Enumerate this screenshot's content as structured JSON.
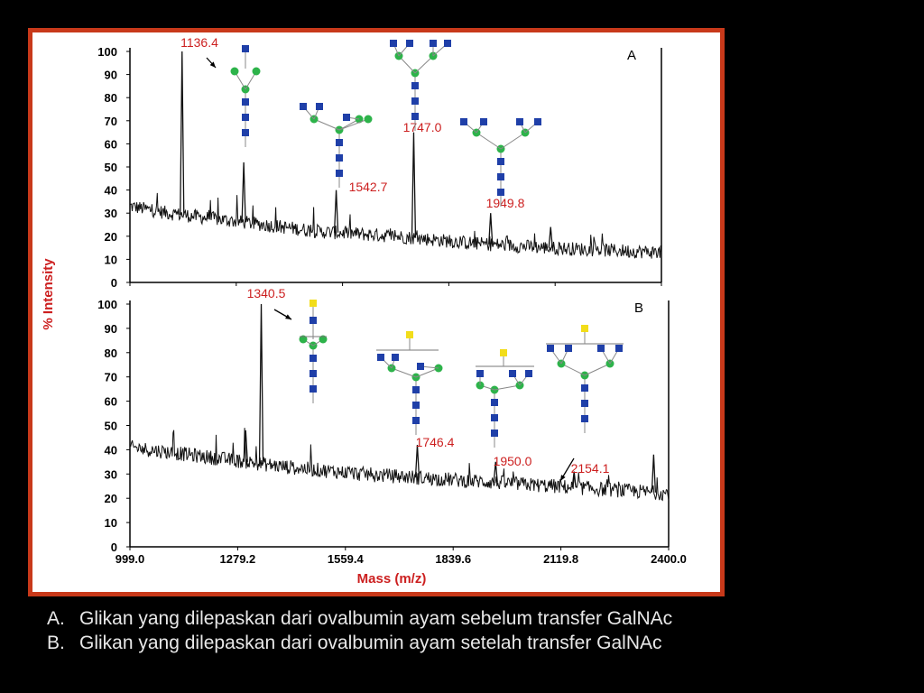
{
  "colors": {
    "background": "#000000",
    "frame": "#c8391a",
    "label_red": "#cc1f1f",
    "trace": "#111111",
    "glcnac_blue": "#1f3fa8",
    "mannose_green": "#2db34a",
    "galnac_yellow": "#f2dd1a"
  },
  "chart_data": [
    {
      "type": "line",
      "panel": "A",
      "ylabel": "% Intensity",
      "ylim": [
        0,
        100
      ],
      "xlim": [
        999.0,
        2400.0
      ],
      "yticks": [
        "0",
        "10",
        "20",
        "30",
        "40",
        "50",
        "60",
        "70",
        "80",
        "90",
        "100"
      ],
      "baseline": [
        [
          999,
          33
        ],
        [
          1100,
          30
        ],
        [
          1300,
          26
        ],
        [
          1500,
          22
        ],
        [
          1700,
          20
        ],
        [
          1900,
          17
        ],
        [
          2100,
          15
        ],
        [
          2400,
          13
        ]
      ],
      "peaks": [
        {
          "x": 1136.4,
          "y": 100,
          "label": "1136.4"
        },
        {
          "x": 1299.0,
          "y": 52
        },
        {
          "x": 1542.7,
          "y": 40,
          "label": "1542.7"
        },
        {
          "x": 1747.0,
          "y": 65,
          "label": "1747.0"
        },
        {
          "x": 1949.8,
          "y": 30,
          "label": "1949.8"
        },
        {
          "x": 2108.0,
          "y": 24
        }
      ]
    },
    {
      "type": "line",
      "panel": "B",
      "xlabel": "Mass (m/z)",
      "ylim": [
        0,
        100
      ],
      "xlim": [
        999.0,
        2400.0
      ],
      "yticks": [
        "0",
        "10",
        "20",
        "30",
        "40",
        "50",
        "60",
        "70",
        "80",
        "90",
        "100"
      ],
      "xticks": [
        "999.0",
        "1279.2",
        "1559.4",
        "1839.6",
        "2119.8",
        "2400.0"
      ],
      "baseline": [
        [
          999,
          41
        ],
        [
          1200,
          37
        ],
        [
          1400,
          33
        ],
        [
          1600,
          30
        ],
        [
          1800,
          28
        ],
        [
          2000,
          26
        ],
        [
          2200,
          24
        ],
        [
          2400,
          22
        ]
      ],
      "peaks": [
        {
          "x": 1300.0,
          "y": 48
        },
        {
          "x": 1340.5,
          "y": 100,
          "label": "1340.5"
        },
        {
          "x": 1746.4,
          "y": 42,
          "label": "1746.4"
        },
        {
          "x": 1950.0,
          "y": 35,
          "label": "1950.0"
        },
        {
          "x": 2154.1,
          "y": 31,
          "label": "2154.1"
        },
        {
          "x": 2361.0,
          "y": 38
        }
      ]
    }
  ],
  "captions": [
    {
      "letter": "A.",
      "text": "Glikan yang dilepaskan dari ovalbumin ayam sebelum transfer GalNAc"
    },
    {
      "letter": "B.",
      "text": "Glikan yang dilepaskan dari ovalbumin ayam setelah transfer GalNAc"
    }
  ]
}
